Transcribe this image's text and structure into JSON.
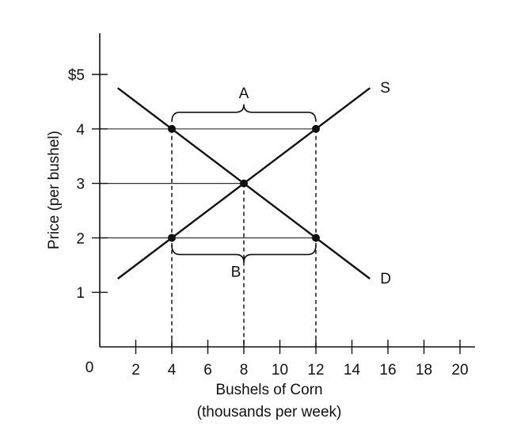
{
  "chart_data": {
    "type": "line",
    "xlabel": "Bushels of Corn",
    "xlabel_sub": "(thousands per week)",
    "ylabel": "Price (per bushel)",
    "origin_label": "0",
    "xlim": [
      0,
      20
    ],
    "ylim": [
      0,
      5
    ],
    "x_ticks": [
      2,
      4,
      6,
      8,
      10,
      12,
      14,
      16,
      18,
      20
    ],
    "x_tick_labels": [
      "2",
      "4",
      "6",
      "8",
      "10",
      "12",
      "14",
      "16",
      "18",
      "20"
    ],
    "y_ticks": [
      1,
      2,
      3,
      4,
      5
    ],
    "y_tick_labels": [
      "1",
      "2",
      "3",
      "4",
      "$5"
    ],
    "series": [
      {
        "name": "S",
        "x": [
          1,
          15
        ],
        "y": [
          1.25,
          4.75
        ]
      },
      {
        "name": "D",
        "x": [
          1,
          15
        ],
        "y": [
          4.75,
          1.25
        ]
      }
    ],
    "points": [
      {
        "x": 4,
        "y": 4
      },
      {
        "x": 12,
        "y": 4
      },
      {
        "x": 8,
        "y": 3
      },
      {
        "x": 4,
        "y": 2
      },
      {
        "x": 12,
        "y": 2
      }
    ],
    "price_lines": [
      4,
      3,
      2
    ],
    "quantity_lines": [
      4,
      8,
      12
    ],
    "braces": [
      {
        "label": "A",
        "x_from": 4,
        "x_to": 12,
        "y": 4,
        "position": "above"
      },
      {
        "label": "B",
        "x_from": 4,
        "x_to": 12,
        "y": 2,
        "position": "below"
      }
    ],
    "grid": false
  }
}
